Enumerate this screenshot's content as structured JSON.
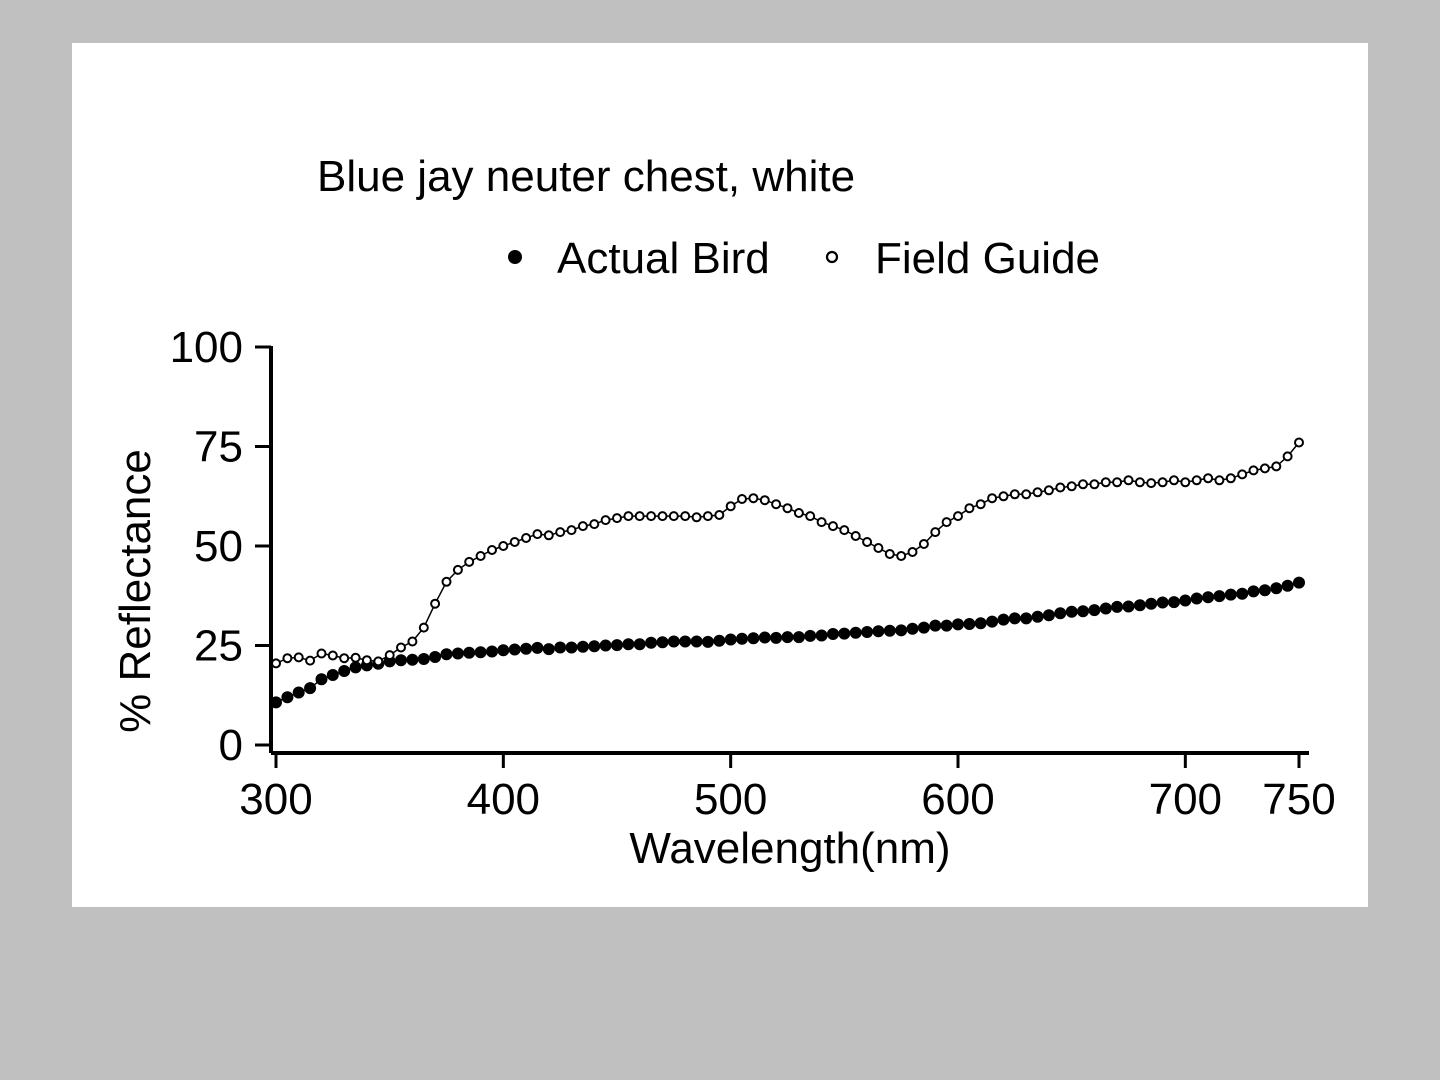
{
  "colors": {
    "background": "#c0c0c0",
    "panel": "#ffffff",
    "ink": "#000000"
  },
  "chart_data": {
    "type": "scatter",
    "title": "Blue jay neuter chest, white",
    "xlabel": "Wavelength(nm)",
    "ylabel": "% Reflectance",
    "xlim": [
      300,
      750
    ],
    "ylim": [
      0,
      100
    ],
    "xticks": [
      300,
      400,
      500,
      600,
      700,
      750
    ],
    "yticks": [
      0,
      25,
      50,
      75,
      100
    ],
    "grid": false,
    "legend_position": "top",
    "series": [
      {
        "name": "Actual Bird",
        "marker": "filled-circle",
        "x": [
          300,
          305,
          310,
          315,
          320,
          325,
          330,
          335,
          340,
          345,
          350,
          355,
          360,
          365,
          370,
          375,
          380,
          385,
          390,
          395,
          400,
          405,
          410,
          415,
          420,
          425,
          430,
          435,
          440,
          445,
          450,
          455,
          460,
          465,
          470,
          475,
          480,
          485,
          490,
          495,
          500,
          505,
          510,
          515,
          520,
          525,
          530,
          535,
          540,
          545,
          550,
          555,
          560,
          565,
          570,
          575,
          580,
          585,
          590,
          595,
          600,
          605,
          610,
          615,
          620,
          625,
          630,
          635,
          640,
          645,
          650,
          655,
          660,
          665,
          670,
          675,
          680,
          685,
          690,
          695,
          700,
          705,
          710,
          715,
          720,
          725,
          730,
          735,
          740,
          745,
          750
        ],
        "y": [
          10.7,
          12.0,
          13.2,
          14.3,
          16.5,
          17.6,
          18.6,
          19.5,
          20.0,
          20.4,
          21.0,
          21.3,
          21.4,
          21.6,
          22.1,
          22.8,
          23.0,
          23.2,
          23.3,
          23.5,
          23.8,
          24.0,
          24.2,
          24.4,
          24.1,
          24.5,
          24.5,
          24.7,
          24.8,
          25.0,
          25.1,
          25.3,
          25.3,
          25.7,
          25.8,
          26.0,
          26.0,
          26.0,
          25.9,
          26.2,
          26.5,
          26.7,
          26.8,
          27.0,
          26.9,
          27.1,
          27.1,
          27.4,
          27.5,
          27.9,
          28.0,
          28.2,
          28.4,
          28.6,
          28.7,
          28.8,
          29.2,
          29.5,
          30.0,
          30.0,
          30.3,
          30.4,
          30.6,
          31.0,
          31.5,
          31.8,
          31.8,
          32.2,
          32.6,
          33.1,
          33.5,
          33.6,
          33.9,
          34.3,
          34.7,
          34.8,
          35.1,
          35.5,
          35.8,
          35.9,
          36.3,
          36.8,
          37.1,
          37.4,
          37.8,
          38.0,
          38.6,
          38.9,
          39.4,
          40.0,
          40.8
        ]
      },
      {
        "name": "Field Guide",
        "marker": "open-circle",
        "x": [
          300,
          305,
          310,
          315,
          320,
          325,
          330,
          335,
          340,
          345,
          350,
          355,
          360,
          365,
          370,
          375,
          380,
          385,
          390,
          395,
          400,
          405,
          410,
          415,
          420,
          425,
          430,
          435,
          440,
          445,
          450,
          455,
          460,
          465,
          470,
          475,
          480,
          485,
          490,
          495,
          500,
          505,
          510,
          515,
          520,
          525,
          530,
          535,
          540,
          545,
          550,
          555,
          560,
          565,
          570,
          575,
          580,
          585,
          590,
          595,
          600,
          605,
          610,
          615,
          620,
          625,
          630,
          635,
          640,
          645,
          650,
          655,
          660,
          665,
          670,
          675,
          680,
          685,
          690,
          695,
          700,
          705,
          710,
          715,
          720,
          725,
          730,
          735,
          740,
          745,
          750
        ],
        "y": [
          20.5,
          21.8,
          22.0,
          21.2,
          23.0,
          22.5,
          21.8,
          21.9,
          21.3,
          21.0,
          22.6,
          24.5,
          26.0,
          29.5,
          35.5,
          41.0,
          44.0,
          46.0,
          47.5,
          49.0,
          50.0,
          51.0,
          52.0,
          53.0,
          52.7,
          53.5,
          54.0,
          55.0,
          55.5,
          56.5,
          57.0,
          57.5,
          57.5,
          57.5,
          57.5,
          57.5,
          57.5,
          57.2,
          57.5,
          57.8,
          60.0,
          61.8,
          62.0,
          61.5,
          60.5,
          59.5,
          58.3,
          57.5,
          56.0,
          55.0,
          54.0,
          52.5,
          51.0,
          49.5,
          48.0,
          47.5,
          48.5,
          50.5,
          53.5,
          56.0,
          57.5,
          59.5,
          60.5,
          62.0,
          62.5,
          63.0,
          63.0,
          63.5,
          64.0,
          64.7,
          65.0,
          65.5,
          65.5,
          66.0,
          66.0,
          66.5,
          66.0,
          65.8,
          66.0,
          66.5,
          66.0,
          66.5,
          67.0,
          66.5,
          67.0,
          68.0,
          69.0,
          69.5,
          70.0,
          72.5,
          76.0
        ]
      }
    ]
  }
}
